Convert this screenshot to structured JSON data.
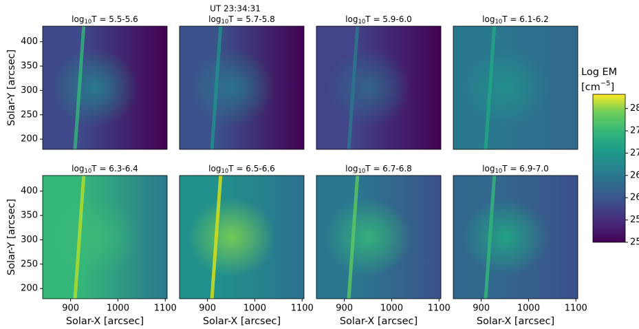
{
  "title": "UT 23:34:31",
  "axes": {
    "xlabel": "Solar-X [arcsec]",
    "ylabel": "Solar-Y [arcsec]",
    "xlim": [
      841,
      1104
    ],
    "xticks": [
      900,
      1000,
      1100
    ],
    "ylim": [
      179,
      432
    ],
    "yticks": [
      200,
      250,
      300,
      350,
      400
    ]
  },
  "colorbar": {
    "label": "Log EM",
    "unit_parts": [
      "[cm",
      "−5",
      "]"
    ],
    "lim": [
      25,
      28.32
    ],
    "ticks": [
      {
        "value": 25,
        "label": "25.0"
      },
      {
        "value": 25.5,
        "label": "25.5"
      },
      {
        "value": 26,
        "label": "26.0"
      },
      {
        "value": 26.5,
        "label": "26.5"
      },
      {
        "value": 27,
        "label": "27.0"
      },
      {
        "value": 27.5,
        "label": "27.5"
      },
      {
        "value": 28,
        "label": "28.0"
      }
    ]
  },
  "chart_data": [
    {
      "type": "heatmap",
      "title_parts": [
        "log",
        "10",
        "T = 5.5-5.6"
      ]
    },
    {
      "type": "heatmap",
      "title_parts": [
        "log",
        "10",
        "T = 5.7-5.8"
      ]
    },
    {
      "type": "heatmap",
      "title_parts": [
        "log",
        "10",
        "T = 5.9-6.0"
      ]
    },
    {
      "type": "heatmap",
      "title_parts": [
        "log",
        "10",
        "T = 6.1-6.2"
      ]
    },
    {
      "type": "heatmap",
      "title_parts": [
        "log",
        "10",
        "T = 6.3-6.4"
      ]
    },
    {
      "type": "heatmap",
      "title_parts": [
        "log",
        "10",
        "T = 6.5-6.6"
      ]
    },
    {
      "type": "heatmap",
      "title_parts": [
        "log",
        "10",
        "T = 6.7-6.8"
      ]
    },
    {
      "type": "heatmap",
      "title_parts": [
        "log",
        "10",
        "T = 6.9-7.0"
      ]
    }
  ]
}
